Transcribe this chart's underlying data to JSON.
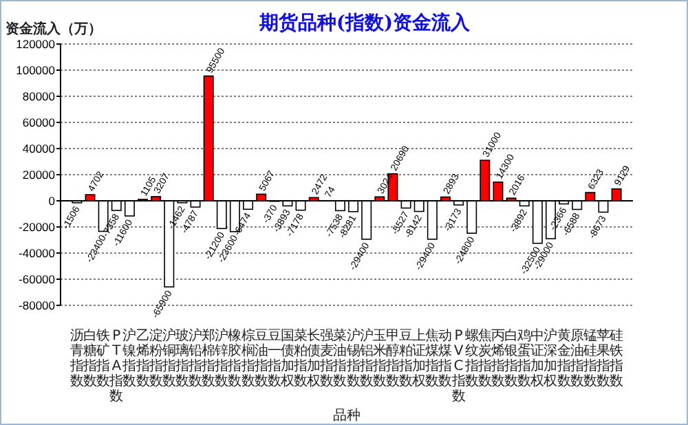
{
  "chart_data": {
    "type": "bar",
    "title": "期货品种(指数)资金流入",
    "xlabel": "品种",
    "ylabel": "资金流入（万）",
    "categories": [
      "沥青指数",
      "白糖指数",
      "铁矿指数",
      "PTA指数",
      "沪镍指数",
      "乙烯指数",
      "淀粉指数",
      "沪铜指数",
      "玻璃指数",
      "沪铅指数",
      "郑棉指数",
      "沪锌指数",
      "橡胶指数",
      "棕榈指数",
      "豆油指数",
      "豆一指数",
      "国债加权",
      "菜粕指数",
      "长债加权",
      "强麦指数",
      "菜油指数",
      "沪锡指数",
      "沪铝指数",
      "玉米指数",
      "甲醇指数",
      "豆粕指数",
      "上证加权",
      "焦煤指数",
      "动煤指数",
      "PVC指数",
      "螺纹指数",
      "焦炭指数",
      "丙烯指数",
      "白银指数",
      "鸡蛋指数",
      "中证加权",
      "沪深加权",
      "黄金指数",
      "原油指数",
      "锰硅指数",
      "苹果指数",
      "硅铁指数"
    ],
    "values": [
      -1506,
      4702,
      -23400,
      -7358,
      -11600,
      1105,
      3207,
      -65900,
      -1462,
      -4787,
      95500,
      -21200,
      -23600,
      -6474,
      5067,
      -370,
      -3893,
      -7178,
      2472,
      74,
      -7538,
      -8281,
      -29400,
      3024,
      20690,
      -5527,
      -8142,
      -29400,
      2893,
      -3173,
      -24800,
      31000,
      14300,
      2016,
      -3892,
      -32500,
      -29000,
      -2366,
      -6588,
      6323,
      -8673,
      9129
    ],
    "colors": [
      "#ffffff",
      "#ff0000",
      "#ffffff",
      "#ffffff",
      "#ffffff",
      "#ff0000",
      "#ff0000",
      "#ffffff",
      "#ffffff",
      "#ffffff",
      "#ff0000",
      "#ffffff",
      "#ffffff",
      "#ffffff",
      "#ff0000",
      "#ffffff",
      "#ffffff",
      "#ffffff",
      "#ff0000",
      "#ff0000",
      "#ffffff",
      "#ffffff",
      "#ffffff",
      "#ff0000",
      "#ff0000",
      "#ffffff",
      "#ffffff",
      "#ffffff",
      "#ff0000",
      "#ffffff",
      "#ffffff",
      "#ff0000",
      "#ff0000",
      "#ff0000",
      "#ffffff",
      "#ffffff",
      "#ffffff",
      "#ffffff",
      "#ffffff",
      "#ff0000",
      "#ffffff",
      "#ff0000"
    ],
    "ylim": [
      -80000,
      120000
    ],
    "yticks": [
      -80000,
      -60000,
      -40000,
      -20000,
      0,
      20000,
      40000,
      60000,
      80000,
      100000,
      120000
    ],
    "grid": "y",
    "data_labels": true
  }
}
